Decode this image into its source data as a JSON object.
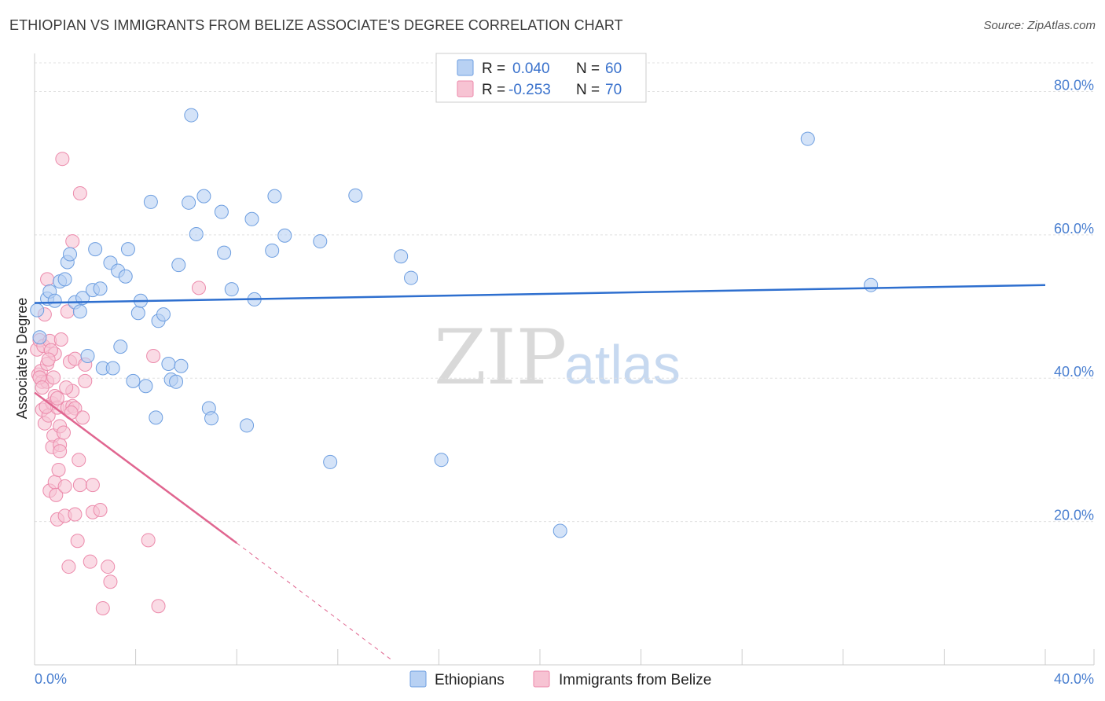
{
  "title": "ETHIOPIAN VS IMMIGRANTS FROM BELIZE ASSOCIATE'S DEGREE CORRELATION CHART",
  "source": "Source: ZipAtlas.com",
  "watermark": {
    "zip": "ZIP",
    "atlas": "atlas"
  },
  "colors": {
    "blue_fill": "#b8d1f3",
    "blue_stroke": "#6d9ee0",
    "blue_line": "#2e6fcf",
    "pink_fill": "#f7c3d3",
    "pink_stroke": "#ec8aab",
    "pink_line": "#e06690",
    "grid": "#e0e0e0",
    "axis_label": "#4a7fd0"
  },
  "legend": {
    "entries": [
      {
        "r_label": "R =",
        "r_value": "0.040",
        "n_label": "N =",
        "n_value": "60"
      },
      {
        "r_label": "R =",
        "r_value": "-0.253",
        "n_label": "N =",
        "n_value": "70"
      }
    ]
  },
  "bottom_legend": {
    "series1": "Ethiopians",
    "series2": "Immigrants from Belize"
  },
  "chart_data": {
    "type": "scatter",
    "title": "ETHIOPIAN VS IMMIGRANTS FROM BELIZE ASSOCIATE'S DEGREE CORRELATION CHART",
    "xlabel": "",
    "ylabel": "Associate's Degree",
    "xlim": [
      0,
      40
    ],
    "ylim": [
      0,
      84
    ],
    "x_tick_labels": {
      "left": "0.0%",
      "right": "40.0%"
    },
    "y_ticks": [
      {
        "value": 20,
        "label": "20.0%"
      },
      {
        "value": 40,
        "label": "40.0%"
      },
      {
        "value": 60,
        "label": "60.0%"
      },
      {
        "value": 80,
        "label": "80.0%"
      }
    ],
    "series": [
      {
        "name": "Ethiopians",
        "R": 0.04,
        "N": 60,
        "trend": {
          "x0": 0,
          "y0": 50.5,
          "x1": 40,
          "y1": 53.0
        },
        "points": [
          [
            0.1,
            49.5
          ],
          [
            0.2,
            45.7
          ],
          [
            0.5,
            51.1
          ],
          [
            0.6,
            52.1
          ],
          [
            0.8,
            50.8
          ],
          [
            1.0,
            53.5
          ],
          [
            1.2,
            53.8
          ],
          [
            1.3,
            56.2
          ],
          [
            1.4,
            57.3
          ],
          [
            1.6,
            50.6
          ],
          [
            1.8,
            49.3
          ],
          [
            1.9,
            51.2
          ],
          [
            2.1,
            43.1
          ],
          [
            2.3,
            52.3
          ],
          [
            2.4,
            58.0
          ],
          [
            2.6,
            52.5
          ],
          [
            2.7,
            41.4
          ],
          [
            3.0,
            56.1
          ],
          [
            3.1,
            41.4
          ],
          [
            3.3,
            55.0
          ],
          [
            3.4,
            44.4
          ],
          [
            3.6,
            54.2
          ],
          [
            3.7,
            58.0
          ],
          [
            3.9,
            39.6
          ],
          [
            4.1,
            49.1
          ],
          [
            4.2,
            50.8
          ],
          [
            4.4,
            38.9
          ],
          [
            4.6,
            64.6
          ],
          [
            4.8,
            34.5
          ],
          [
            4.9,
            48.0
          ],
          [
            5.1,
            48.9
          ],
          [
            5.3,
            42.0
          ],
          [
            5.4,
            39.8
          ],
          [
            5.6,
            39.5
          ],
          [
            5.7,
            55.8
          ],
          [
            5.8,
            41.7
          ],
          [
            6.1,
            64.5
          ],
          [
            6.2,
            76.7
          ],
          [
            6.4,
            60.1
          ],
          [
            6.7,
            65.4
          ],
          [
            6.9,
            35.8
          ],
          [
            7.0,
            34.4
          ],
          [
            7.4,
            63.2
          ],
          [
            7.5,
            57.5
          ],
          [
            7.8,
            52.4
          ],
          [
            8.4,
            33.4
          ],
          [
            8.6,
            62.2
          ],
          [
            8.7,
            51.0
          ],
          [
            9.4,
            57.8
          ],
          [
            9.5,
            65.4
          ],
          [
            9.9,
            59.9
          ],
          [
            11.3,
            59.1
          ],
          [
            11.7,
            28.3
          ],
          [
            12.7,
            65.5
          ],
          [
            14.5,
            57.0
          ],
          [
            14.9,
            54.0
          ],
          [
            16.1,
            28.6
          ],
          [
            20.8,
            18.7
          ],
          [
            30.6,
            73.4
          ],
          [
            33.1,
            53.0
          ]
        ]
      },
      {
        "name": "Immigrants from Belize",
        "R": -0.253,
        "N": 70,
        "trend": {
          "x0": 0,
          "y0": 38.0,
          "x1": 8.0,
          "y1": 17.0
        },
        "trend_dashed": {
          "x0": 8.0,
          "y0": 17.0,
          "x1": 14.2,
          "y1": 0.5
        },
        "points": [
          [
            0.1,
            44.0
          ],
          [
            0.15,
            40.5
          ],
          [
            0.2,
            45.3
          ],
          [
            0.25,
            41.0
          ],
          [
            0.3,
            35.6
          ],
          [
            0.3,
            39.5
          ],
          [
            0.35,
            44.5
          ],
          [
            0.4,
            48.9
          ],
          [
            0.4,
            33.7
          ],
          [
            0.5,
            53.8
          ],
          [
            0.5,
            42.0
          ],
          [
            0.5,
            39.5
          ],
          [
            0.55,
            34.8
          ],
          [
            0.6,
            24.3
          ],
          [
            0.6,
            45.2
          ],
          [
            0.7,
            36.5
          ],
          [
            0.7,
            30.4
          ],
          [
            0.75,
            32.0
          ],
          [
            0.8,
            25.5
          ],
          [
            0.8,
            37.5
          ],
          [
            0.8,
            43.4
          ],
          [
            0.85,
            23.7
          ],
          [
            0.9,
            20.3
          ],
          [
            0.9,
            35.9
          ],
          [
            0.95,
            27.2
          ],
          [
            1.0,
            30.7
          ],
          [
            1.0,
            29.8
          ],
          [
            1.0,
            33.3
          ],
          [
            1.05,
            45.4
          ],
          [
            1.1,
            70.6
          ],
          [
            1.2,
            20.8
          ],
          [
            1.2,
            24.9
          ],
          [
            1.3,
            49.3
          ],
          [
            1.3,
            35.9
          ],
          [
            1.35,
            13.7
          ],
          [
            1.4,
            42.3
          ],
          [
            1.5,
            59.1
          ],
          [
            1.5,
            36.1
          ],
          [
            1.5,
            38.2
          ],
          [
            1.6,
            42.7
          ],
          [
            1.6,
            21.0
          ],
          [
            1.6,
            35.8
          ],
          [
            1.7,
            17.3
          ],
          [
            1.75,
            28.6
          ],
          [
            1.8,
            65.8
          ],
          [
            1.8,
            25.1
          ],
          [
            1.9,
            34.5
          ],
          [
            2.0,
            41.9
          ],
          [
            2.0,
            39.6
          ],
          [
            2.2,
            14.4
          ],
          [
            2.3,
            21.3
          ],
          [
            2.3,
            25.1
          ],
          [
            2.6,
            21.6
          ],
          [
            2.7,
            7.9
          ],
          [
            2.9,
            13.7
          ],
          [
            3.0,
            11.6
          ],
          [
            4.5,
            17.4
          ],
          [
            4.7,
            43.1
          ],
          [
            4.9,
            8.2
          ],
          [
            6.5,
            52.6
          ],
          [
            0.2,
            40.1
          ],
          [
            0.3,
            38.7
          ],
          [
            0.45,
            36.0
          ],
          [
            0.65,
            43.9
          ],
          [
            0.75,
            40.1
          ],
          [
            0.9,
            37.2
          ],
          [
            1.15,
            32.4
          ],
          [
            1.25,
            38.7
          ],
          [
            1.45,
            35.2
          ],
          [
            0.55,
            42.6
          ]
        ]
      }
    ]
  }
}
